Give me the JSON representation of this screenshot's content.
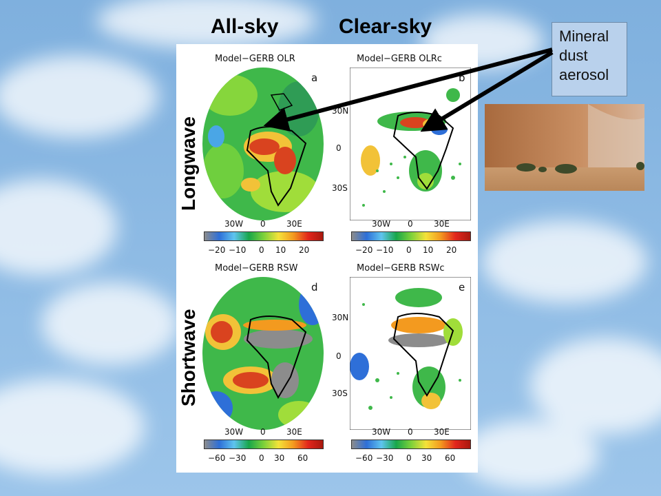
{
  "headings": {
    "all_sky": "All-sky",
    "clear_sky": "Clear-sky"
  },
  "row_labels": {
    "longwave": "Longwave",
    "shortwave": "Shortwave"
  },
  "callout": {
    "line1": "Mineral",
    "line2": "dust",
    "line3": "aerosol"
  },
  "panels": {
    "a": {
      "title": "Model−GERB  OLR",
      "letter": "a"
    },
    "b": {
      "title": "Model−GERB  OLRc",
      "letter": "b"
    },
    "d": {
      "title": "Model−GERB  RSW",
      "letter": "d"
    },
    "e": {
      "title": "Model−GERB  RSWc",
      "letter": "e"
    }
  },
  "lat_ticks": [
    "30N",
    "0",
    "30S"
  ],
  "lon_ticks": [
    "30W",
    "0",
    "30E"
  ],
  "colorbar_longwave_ticks": [
    "−20",
    "−10",
    "0",
    "10",
    "20"
  ],
  "colorbar_shortwave_ticks": [
    "−60",
    "−30",
    "0",
    "30",
    "60"
  ],
  "colors": {
    "colorbar_ramp": [
      "#8c8c8c",
      "#2e6fd8",
      "#5fc4ef",
      "#18a64a",
      "#7cd13a",
      "#f4e23a",
      "#f39a1f",
      "#e2261c",
      "#a8190f"
    ],
    "arrow": "#000000",
    "callout_fill": "#b9d1ec"
  }
}
